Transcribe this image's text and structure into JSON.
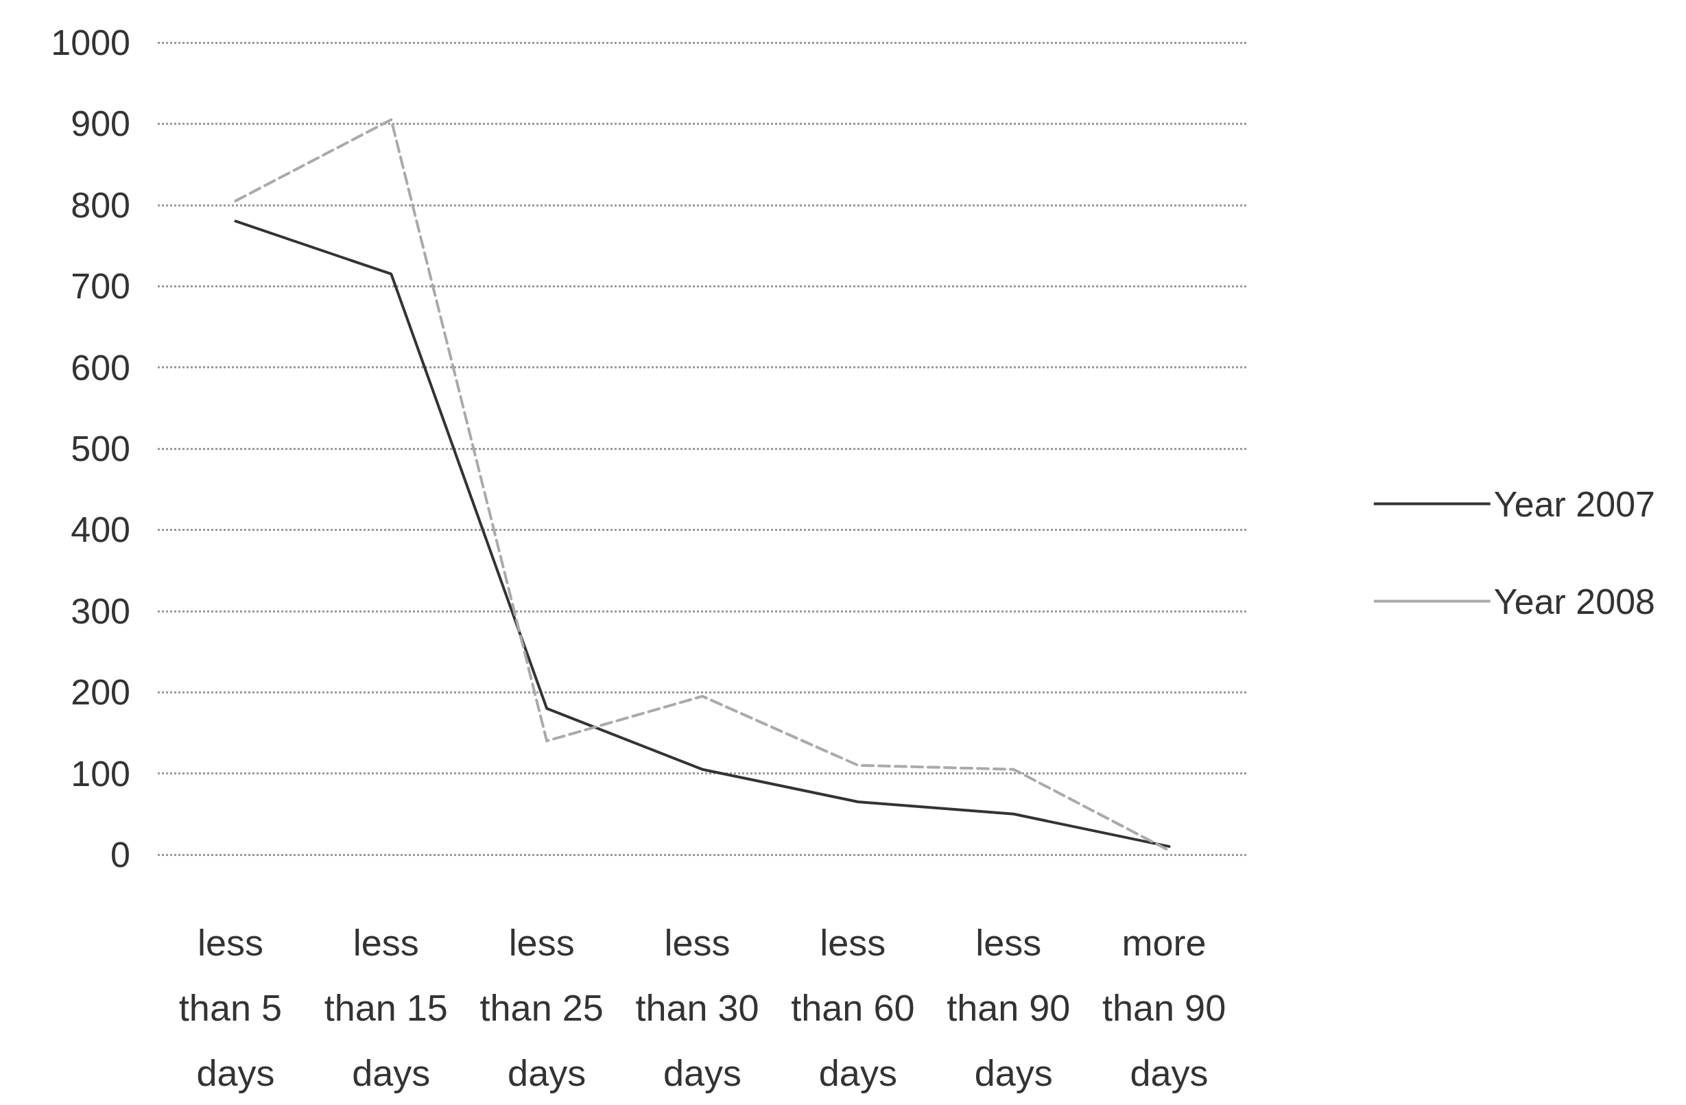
{
  "chart_data": {
    "type": "line",
    "categories": [
      "less than 5 days",
      "less than 15 days",
      "less than 25 days",
      "less than 30 days",
      "less than 60 days",
      "less than 90 days",
      "more than 90 days"
    ],
    "series": [
      {
        "name": "Year 2007",
        "color": "#333333",
        "line_style": "solid",
        "values": [
          780,
          715,
          180,
          105,
          65,
          50,
          10
        ]
      },
      {
        "name": "Year 2008",
        "color": "#aaaaaa",
        "line_style": "dashed",
        "values": [
          805,
          905,
          140,
          195,
          110,
          105,
          5
        ]
      }
    ],
    "ylim": [
      0,
      1000
    ],
    "yticks": [
      0,
      100,
      200,
      300,
      400,
      500,
      600,
      700,
      800,
      900,
      1000
    ],
    "grid": "y",
    "legend": "right",
    "marker": "none"
  }
}
